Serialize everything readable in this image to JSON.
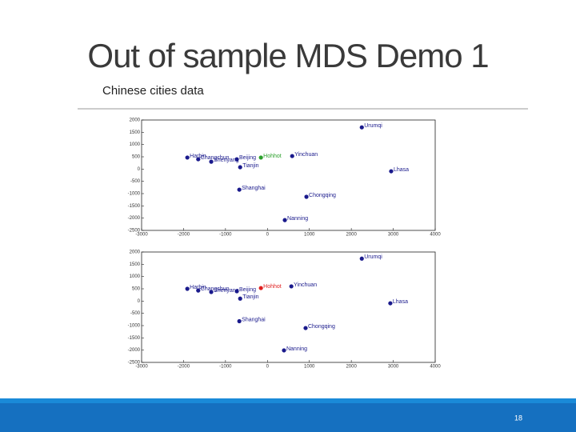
{
  "slide": {
    "title": "Out of sample MDS Demo 1",
    "subtitle": "Chinese cities data",
    "page_number": "18"
  },
  "chart_data": [
    {
      "type": "scatter",
      "labels": [
        "Harbin",
        "Changchun",
        "Shenyang",
        "Beijing",
        "Hohhot",
        "Yinchuan",
        "Tianjin",
        "Shanghai",
        "Chongqing",
        "Nanning",
        "Urumqi",
        "Lhasa"
      ],
      "x": [
        -1910,
        -1650,
        -1340,
        -730,
        -155,
        590,
        -650,
        -670,
        930,
        415,
        2250,
        2950
      ],
      "y": [
        470,
        400,
        300,
        400,
        470,
        530,
        75,
        -840,
        -1130,
        -2080,
        1700,
        -90
      ],
      "colors": [
        "#1a1a8c",
        "#1a1a8c",
        "#1a1a8c",
        "#1a1a8c",
        "#2ca02c",
        "#1a1a8c",
        "#1a1a8c",
        "#1a1a8c",
        "#1a1a8c",
        "#1a1a8c",
        "#1a1a8c",
        "#1a1a8c"
      ],
      "xlim": [
        -3000,
        4000
      ],
      "xticks": [
        -3000,
        -2000,
        -1000,
        0,
        1000,
        2000,
        3000,
        4000
      ],
      "ylim": [
        -2500,
        2000
      ],
      "yticks": [
        -2500,
        -2000,
        -1500,
        -1000,
        -500,
        0,
        500,
        1000,
        1500,
        2000
      ]
    },
    {
      "type": "scatter",
      "labels": [
        "Harbin",
        "Changchun",
        "Shenyang",
        "Beijing",
        "Hohhot",
        "Yinchuan",
        "Tianjin",
        "Shanghai",
        "Chongqing",
        "Nanning",
        "Urumqi",
        "Lhasa"
      ],
      "x": [
        -1910,
        -1650,
        -1340,
        -730,
        -155,
        570,
        -650,
        -670,
        910,
        395,
        2250,
        2930
      ],
      "y": [
        500,
        430,
        370,
        400,
        530,
        600,
        100,
        -820,
        -1100,
        -2010,
        1730,
        -90
      ],
      "colors": [
        "#1a1a8c",
        "#1a1a8c",
        "#1a1a8c",
        "#1a1a8c",
        "#e02020",
        "#1a1a8c",
        "#1a1a8c",
        "#1a1a8c",
        "#1a1a8c",
        "#1a1a8c",
        "#1a1a8c",
        "#1a1a8c"
      ],
      "xlim": [
        -3000,
        4000
      ],
      "xticks": [
        -3000,
        -2000,
        -1000,
        0,
        1000,
        2000,
        3000,
        4000
      ],
      "ylim": [
        -2500,
        2000
      ],
      "yticks": [
        -2500,
        -2000,
        -1500,
        -1000,
        -500,
        0,
        500,
        1000,
        1500,
        2000
      ]
    }
  ]
}
